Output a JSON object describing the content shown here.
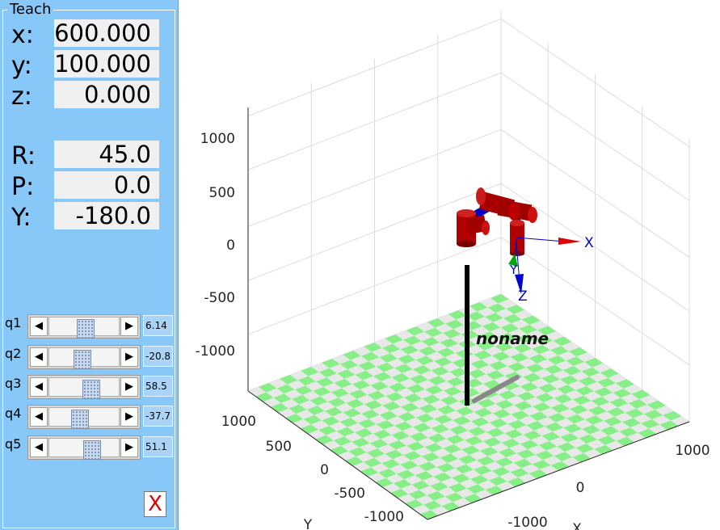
{
  "teach": {
    "title": "Teach",
    "position": [
      {
        "label": "x:",
        "value": "600.000"
      },
      {
        "label": "y:",
        "value": "100.000"
      },
      {
        "label": "z:",
        "value": "0.000"
      }
    ],
    "orientation": [
      {
        "label": "R:",
        "value": "45.0"
      },
      {
        "label": "P:",
        "value": "0.0"
      },
      {
        "label": "Y:",
        "value": "-180.0"
      }
    ],
    "joints": [
      {
        "label": "q1",
        "value": "6.14",
        "slider_fraction": 0.52
      },
      {
        "label": "q2",
        "value": "-20.8",
        "slider_fraction": 0.45
      },
      {
        "label": "q3",
        "value": "58.5",
        "slider_fraction": 0.62
      },
      {
        "label": "q4",
        "value": "-37.7",
        "slider_fraction": 0.41
      },
      {
        "label": "q5",
        "value": "51.1",
        "slider_fraction": 0.63
      }
    ],
    "close_label": "X",
    "arrow_left": "◀",
    "arrow_right": "▶"
  },
  "plot": {
    "z_ticks": [
      "1000",
      "500",
      "0",
      "-500",
      "-1000"
    ],
    "y_ticks": [
      "1000",
      "500",
      "0",
      "-500",
      "-1000"
    ],
    "x_ticks": [
      "-1000",
      "0",
      "1000"
    ],
    "x_axis_label": "X",
    "y_axis_label": "Y",
    "robot_name": "noname",
    "frame_labels": {
      "x": "X",
      "y": "Y",
      "z": "Z"
    },
    "colors": {
      "floor_green": "#88ee88",
      "floor_light": "#e8e8e8",
      "link_red": "#b00000",
      "axis_blue": "#0000cc",
      "axis_red": "#dd0000",
      "axis_green": "#00aa00"
    }
  }
}
